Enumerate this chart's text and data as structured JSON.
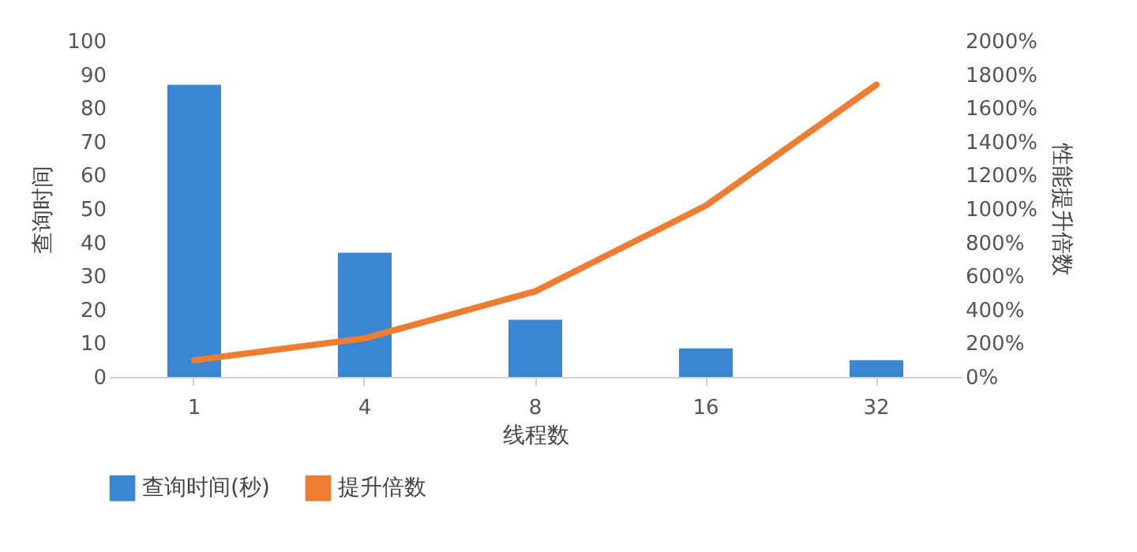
{
  "chart_data": {
    "type": "bar",
    "xlabel": "线程数",
    "ylabel": "查询时间",
    "y2label": "性能提升倍数",
    "categories": [
      "1",
      "4",
      "8",
      "16",
      "32"
    ],
    "series": [
      {
        "name": "查询时间(秒)",
        "color": "#3a86d4",
        "values": [
          87,
          37,
          17,
          8.5,
          5
        ]
      },
      {
        "name": "提升倍数",
        "type": "line",
        "axis": "y2",
        "color": "#ed7d31",
        "values": [
          100,
          230,
          510,
          1020,
          1740
        ]
      }
    ],
    "ylim": [
      0,
      100
    ],
    "yticks": [
      0,
      10,
      20,
      30,
      40,
      50,
      60,
      70,
      80,
      90,
      100
    ],
    "y2lim": [
      0,
      2000
    ],
    "y2ticks": [
      {
        "value": 0,
        "label": "0%"
      },
      {
        "value": 200,
        "label": "200%"
      },
      {
        "value": 400,
        "label": "400%"
      },
      {
        "value": 600,
        "label": "600%"
      },
      {
        "value": 800,
        "label": "800%"
      },
      {
        "value": 1000,
        "label": "1000%"
      },
      {
        "value": 1200,
        "label": "1200%"
      },
      {
        "value": 1400,
        "label": "1400%"
      },
      {
        "value": 1600,
        "label": "1600%"
      },
      {
        "value": 1800,
        "label": "1800%"
      },
      {
        "value": 2000,
        "label": "2000%"
      }
    ],
    "grid": false,
    "legend": "bottom"
  }
}
